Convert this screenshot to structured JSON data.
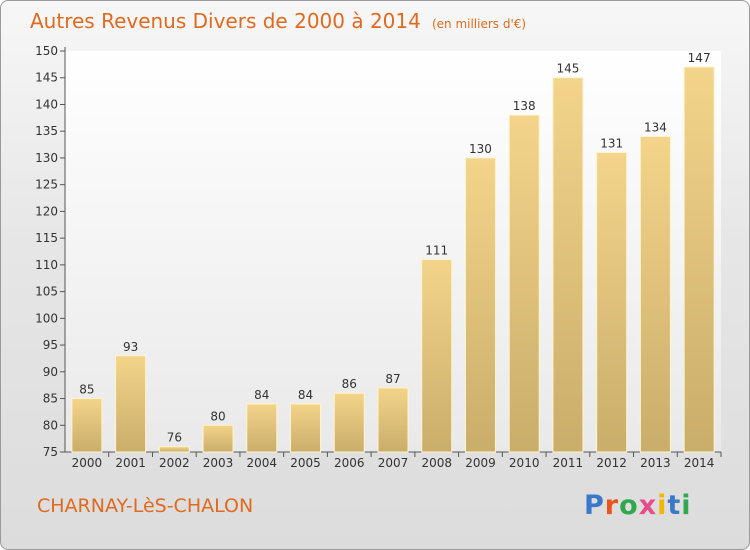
{
  "title": "Autres Revenus Divers de 2000 à 2014",
  "unit_note": "(en milliers d'€)",
  "location": "CHARNAY-LèS-CHALON",
  "brand": {
    "letters": [
      "P",
      "r",
      "o",
      "x",
      "i",
      "t",
      "i"
    ],
    "colors": [
      "#3a78c9",
      "#e8541c",
      "#2fa84f",
      "#e84b8a",
      "#f2b600",
      "#3a78c9",
      "#2fa84f"
    ]
  },
  "chart_data": {
    "type": "bar",
    "categories": [
      "2000",
      "2001",
      "2002",
      "2003",
      "2004",
      "2005",
      "2006",
      "2007",
      "2008",
      "2009",
      "2010",
      "2011",
      "2012",
      "2013",
      "2014"
    ],
    "values": [
      85,
      93,
      76,
      80,
      84,
      84,
      86,
      87,
      111,
      130,
      138,
      145,
      131,
      134,
      147
    ],
    "ylim": [
      75,
      150
    ],
    "yticks": [
      75,
      80,
      85,
      90,
      95,
      100,
      105,
      110,
      115,
      120,
      125,
      130,
      135,
      140,
      145,
      150
    ],
    "grid": false,
    "bar_color": "#f3d48a",
    "bar_color_dark": "#c9ad6a"
  }
}
